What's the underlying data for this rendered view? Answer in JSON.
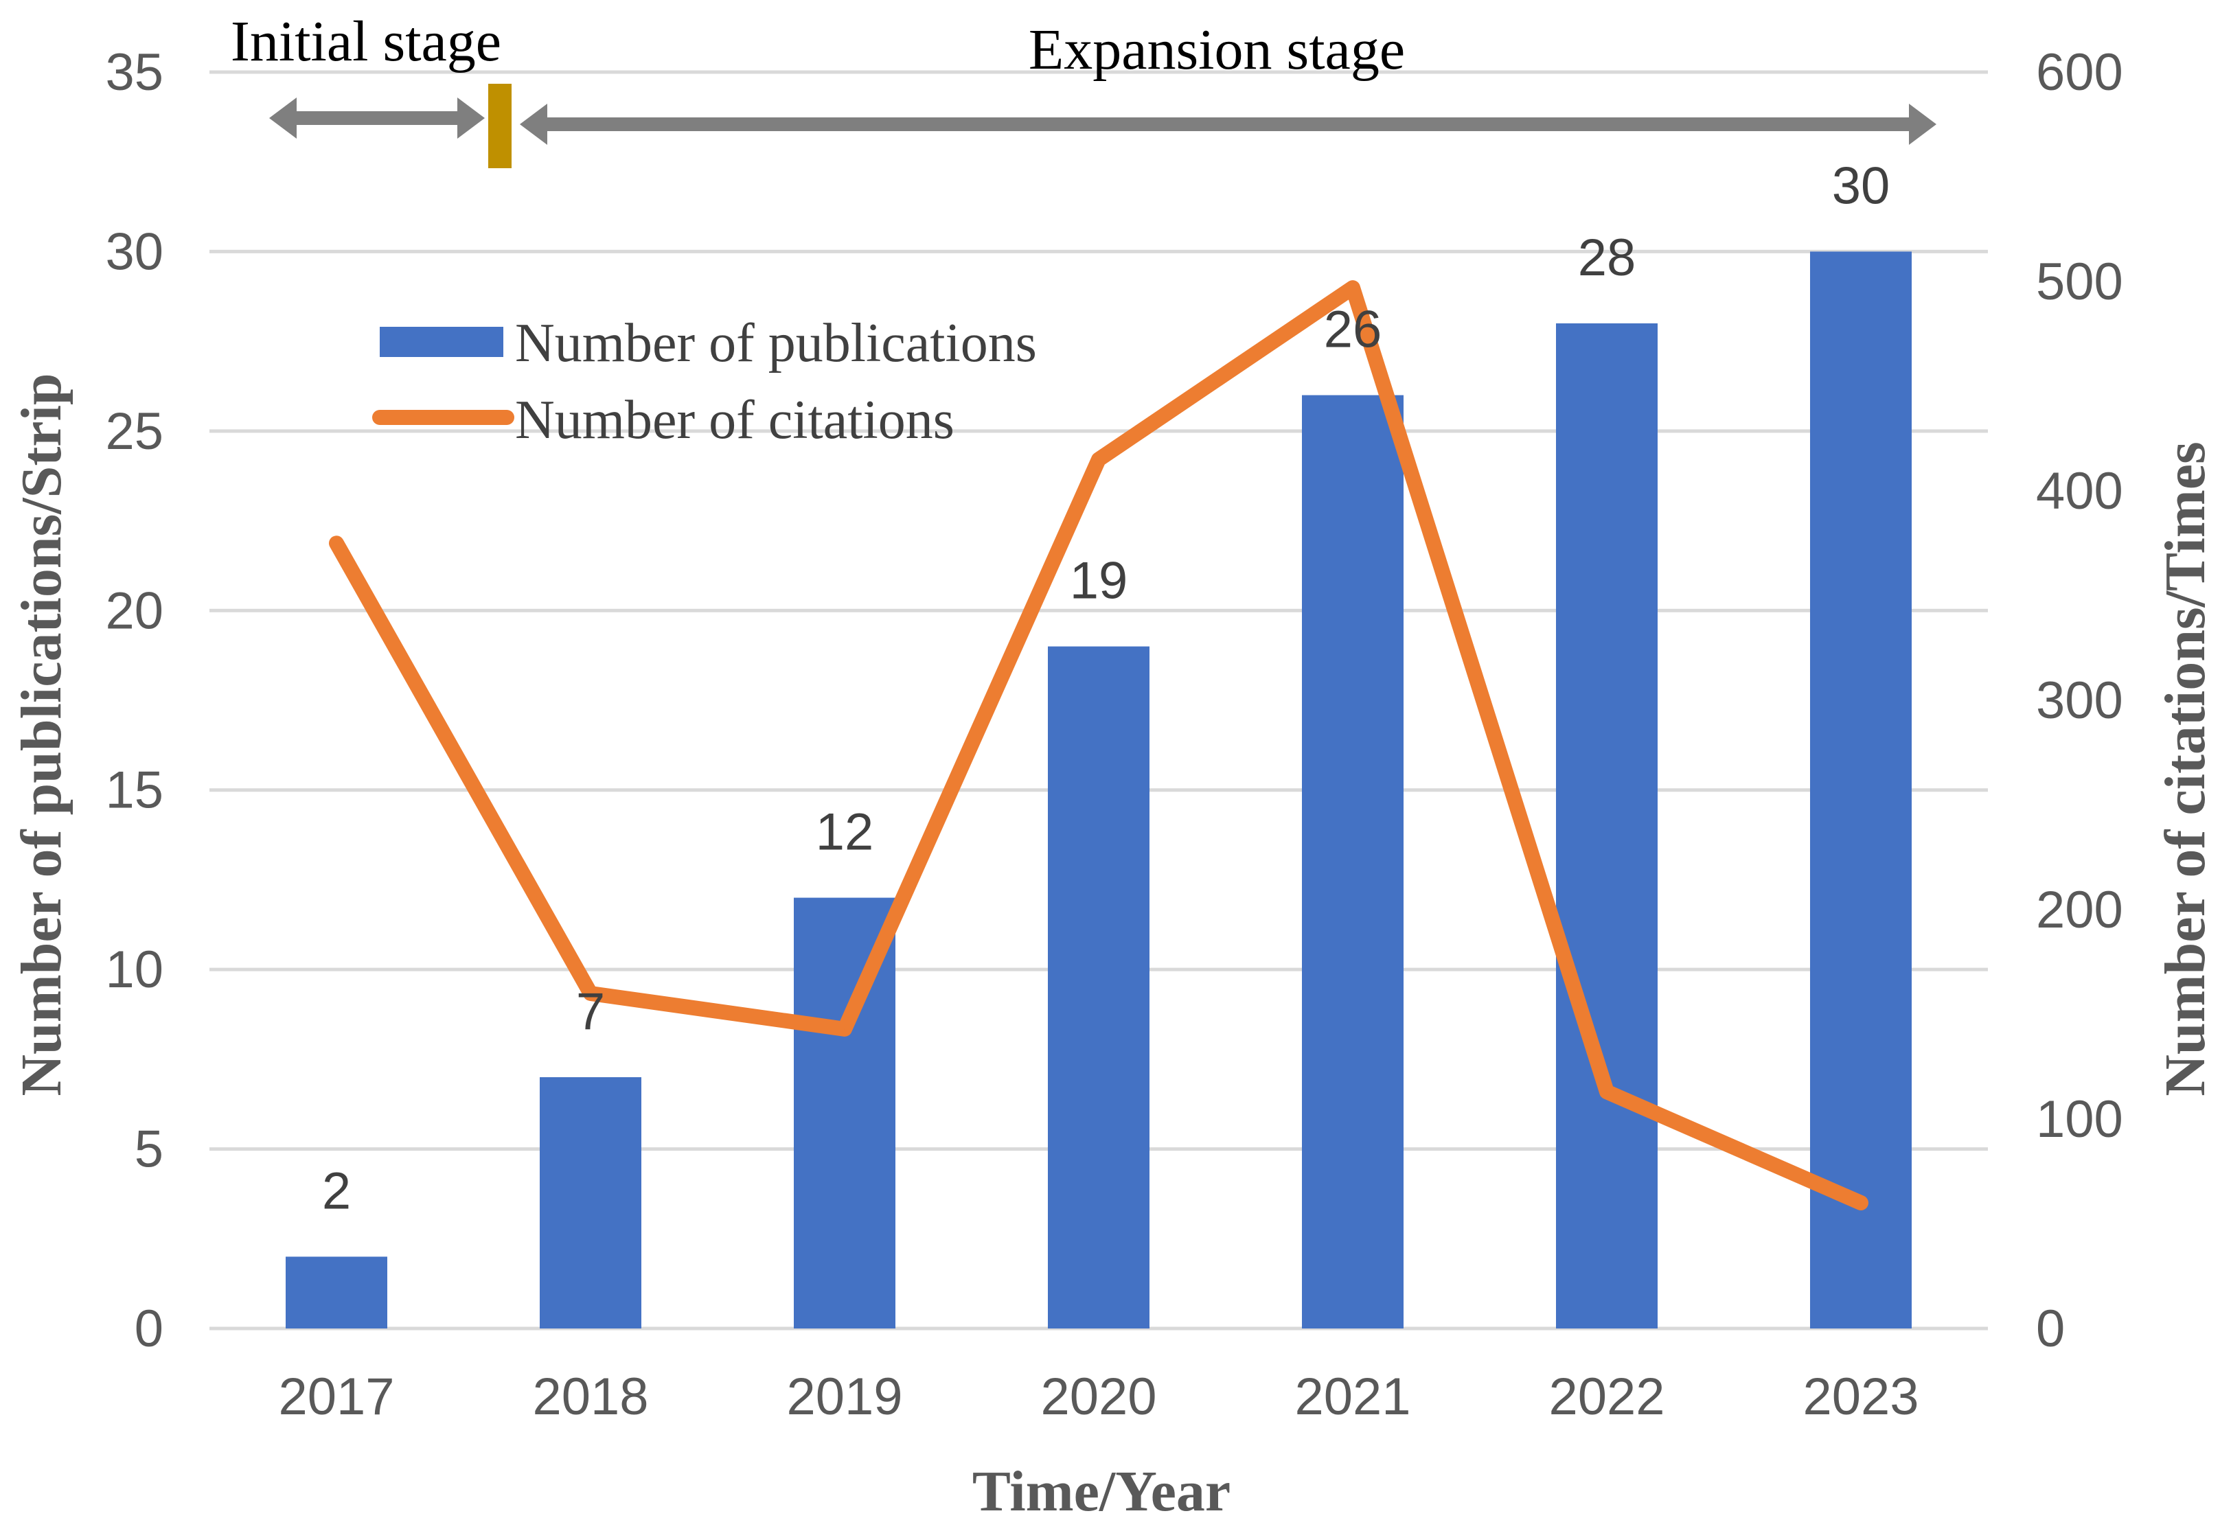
{
  "chart_data": {
    "type": "bar",
    "categories": [
      "2017",
      "2018",
      "2019",
      "2020",
      "2021",
      "2022",
      "2023"
    ],
    "series": [
      {
        "name": "Number of publications",
        "type": "bar",
        "axis": "left",
        "color": "#4472c4",
        "values": [
          2,
          7,
          12,
          19,
          26,
          28,
          30
        ],
        "data_labels": [
          "2",
          "7",
          "12",
          "19",
          "26",
          "28",
          "30"
        ]
      },
      {
        "name": "Number of citations",
        "type": "line",
        "axis": "right",
        "color": "#ed7d31",
        "values": [
          375,
          160,
          143,
          415,
          497,
          113,
          60
        ]
      }
    ],
    "xlabel": "Time/Year",
    "ylabel": "Number of publications/Strip",
    "y2label": "Number of citations/Times",
    "ylim": [
      0,
      35
    ],
    "y2lim": [
      0,
      600
    ],
    "yticks": [
      "0",
      "5",
      "10",
      "15",
      "20",
      "25",
      "30",
      "35"
    ],
    "y2ticks": [
      "0",
      "100",
      "200",
      "300",
      "400",
      "500",
      "600"
    ],
    "grid": true,
    "legend_position": "upper-left",
    "annotations": {
      "initial_stage": "Initial stage",
      "expansion_stage": "Expansion stage",
      "arrow_color": "#7f7f7f",
      "divider_color": "#bf9000"
    }
  }
}
